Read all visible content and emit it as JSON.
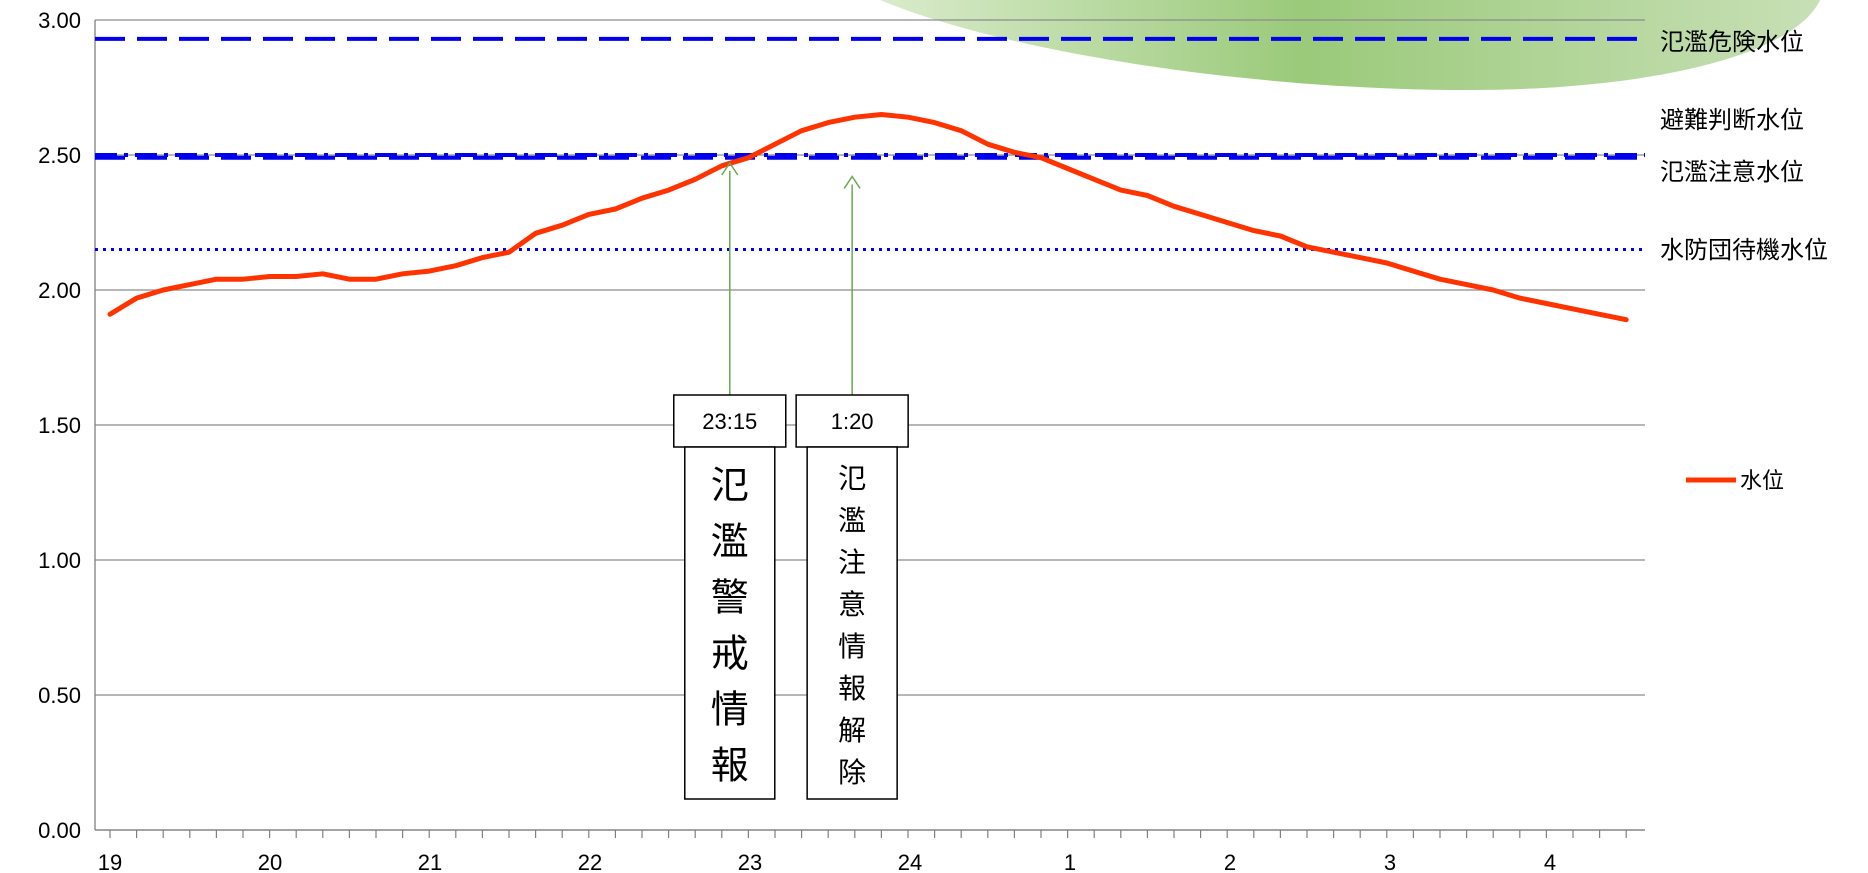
{
  "chart_data": {
    "type": "line",
    "y_axis": {
      "min": 0,
      "max": 3,
      "ticks": [
        "0.00",
        "0.50",
        "1.00",
        "1.50",
        "2.00",
        "2.50",
        "3.00"
      ]
    },
    "x_axis": {
      "tick_labels": [
        "19",
        "20",
        "21",
        "22",
        "23",
        "24",
        "1",
        "2",
        "3",
        "4"
      ]
    },
    "grid": true,
    "legend_position": "right",
    "series": [
      {
        "name": "水位",
        "color": "#ff3300",
        "values": [
          1.91,
          1.97,
          2.0,
          2.02,
          2.04,
          2.04,
          2.05,
          2.05,
          2.06,
          2.04,
          2.04,
          2.06,
          2.07,
          2.09,
          2.12,
          2.14,
          2.21,
          2.24,
          2.28,
          2.3,
          2.34,
          2.37,
          2.41,
          2.46,
          2.49,
          2.54,
          2.59,
          2.62,
          2.64,
          2.65,
          2.64,
          2.62,
          2.59,
          2.54,
          2.51,
          2.49,
          2.45,
          2.41,
          2.37,
          2.35,
          2.31,
          2.28,
          2.25,
          2.22,
          2.2,
          2.16,
          2.14,
          2.12,
          2.1,
          2.07,
          2.04,
          2.02,
          2.0,
          1.97,
          1.95,
          1.93,
          1.91,
          1.89
        ]
      }
    ],
    "reference_lines": [
      {
        "label": "氾濫危険水位",
        "value": 2.93,
        "style": "dashed",
        "color": "#0000ee"
      },
      {
        "label": "避難判断水位",
        "value": 2.5,
        "style": "dash-dot",
        "color": "#0000ee"
      },
      {
        "label": "氾濫注意水位",
        "value": 2.49,
        "style": "dashed",
        "color": "#0000ee"
      },
      {
        "label": "水防団待機水位",
        "value": 2.15,
        "style": "dotted",
        "color": "#0000ee"
      }
    ],
    "annotations": [
      {
        "time": "23:15",
        "text": "氾濫警戒情報",
        "x_index": 23.3,
        "arrow_value": 2.5
      },
      {
        "time": "1:20",
        "text": "氾濫注意情報解除",
        "x_index": 27.9,
        "arrow_value": 2.45
      }
    ]
  }
}
